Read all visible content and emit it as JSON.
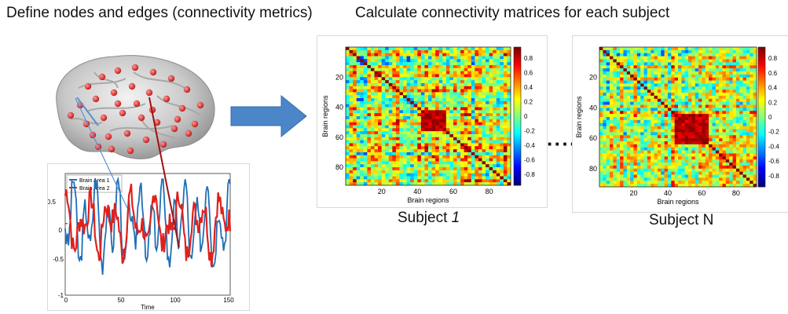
{
  "headings": {
    "left": "Define nodes and edges (connectivity metrics)",
    "right": "Calculate connectivity matrices for each subject"
  },
  "brain": {
    "node_color": "#d42b2b"
  },
  "timeseries": {
    "legend": [
      "Brain Area 1",
      "Brain Area 2"
    ],
    "series_colors": [
      "#1f6fb5",
      "#e0201c"
    ],
    "yticks": [
      "0.5",
      "0",
      "-0.5",
      "-1"
    ],
    "xticks": [
      "0",
      "50",
      "100",
      "150"
    ],
    "xlabel": "Time"
  },
  "matrices": [
    {
      "subject_prefix": "Subject ",
      "subject_id": "1",
      "yticks": [
        "20",
        "40",
        "60",
        "80"
      ],
      "xticks": [
        "20",
        "40",
        "60",
        "80"
      ],
      "ylabel": "Brain regions",
      "xlabel": "Brain regions",
      "colorbar_ticks": [
        "0.8",
        "0.6",
        "0.4",
        "0.2",
        "0",
        "-0.2",
        "-0.4",
        "-0.6",
        "-0.8"
      ]
    },
    {
      "subject_prefix": "Subject ",
      "subject_id": "N",
      "yticks": [
        "20",
        "40",
        "60",
        "80"
      ],
      "xticks": [
        "20",
        "40",
        "60",
        "80"
      ],
      "ylabel": "Brain regions",
      "xlabel": "Brain regions",
      "colorbar_ticks": [
        "0.8",
        "0.6",
        "0.4",
        "0.2",
        "0",
        "-0.2",
        "-0.4",
        "-0.6",
        "-0.8"
      ]
    }
  ],
  "ellipsis": "·····",
  "arrow_color": "#4a86c8"
}
